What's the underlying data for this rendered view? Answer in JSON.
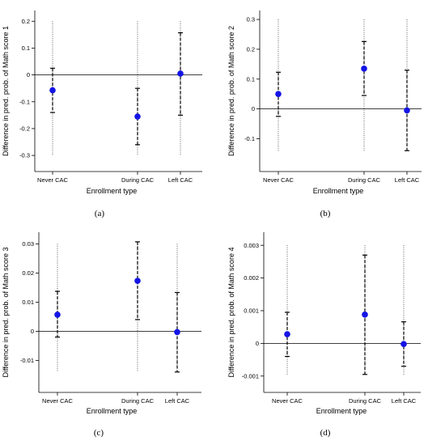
{
  "chart_data": [
    {
      "type": "scatter",
      "panel_label": "(a)",
      "xlabel": "Enrollment type",
      "ylabel": "Difference in pred. prob. of Math score 1",
      "categories": [
        "Never CAC",
        "During CAC",
        "Left CAC"
      ],
      "yticks": [
        0.2,
        0.1,
        0,
        -0.1,
        -0.2,
        -0.3
      ],
      "ytick_labels": [
        "0.2",
        "0.1",
        "0",
        "-0.1",
        "-0.2",
        "-0.3"
      ],
      "ylim": [
        -0.36,
        0.24
      ],
      "reference_line": 0,
      "points": [
        {
          "value": -0.057,
          "ci": [
            -0.14,
            0.025
          ],
          "range": [
            -0.3,
            0.2
          ]
        },
        {
          "value": -0.155,
          "ci": [
            -0.26,
            -0.05
          ],
          "range": [
            -0.3,
            0.2
          ]
        },
        {
          "value": 0.005,
          "ci": [
            -0.15,
            0.157
          ],
          "range": [
            -0.3,
            0.2
          ]
        }
      ],
      "marker_color": "#1414e6"
    },
    {
      "type": "scatter",
      "panel_label": "(b)",
      "xlabel": "Enrollment type",
      "ylabel": "Difference in pred. prob. of Math score 2",
      "categories": [
        "Never CAC",
        "During CAC",
        "Left CAC"
      ],
      "yticks": [
        0.3,
        0.2,
        0.1,
        0,
        -0.1
      ],
      "ytick_labels": [
        "0.3",
        "0.2",
        "0.1",
        "0",
        "-0.1"
      ],
      "ylim": [
        -0.21,
        0.33
      ],
      "reference_line": 0,
      "points": [
        {
          "value": 0.05,
          "ci": [
            -0.025,
            0.123
          ],
          "range": [
            -0.14,
            0.3
          ]
        },
        {
          "value": 0.135,
          "ci": [
            0.045,
            0.226
          ],
          "range": [
            -0.14,
            0.3
          ]
        },
        {
          "value": -0.005,
          "ci": [
            -0.14,
            0.13
          ],
          "range": [
            -0.14,
            0.3
          ]
        }
      ],
      "marker_color": "#1414e6"
    },
    {
      "type": "scatter",
      "panel_label": "(c)",
      "xlabel": "Enrollment type",
      "ylabel": "Difference in pred. prob. of Math score 3",
      "categories": [
        "Never CAC",
        "During CAC",
        "Left CAC"
      ],
      "yticks": [
        0.03,
        0.02,
        0.01,
        0,
        -0.01
      ],
      "ytick_labels": [
        "0.03",
        "0.02",
        "0.01",
        "0",
        "-0.01"
      ],
      "ylim": [
        -0.021,
        0.034
      ],
      "reference_line": 0,
      "points": [
        {
          "value": 0.0057,
          "ci": [
            -0.002,
            0.0137
          ],
          "range": [
            -0.014,
            0.03
          ]
        },
        {
          "value": 0.0173,
          "ci": [
            0.004,
            0.0307
          ],
          "range": [
            -0.014,
            0.03
          ]
        },
        {
          "value": -0.0003,
          "ci": [
            -0.014,
            0.0133
          ],
          "range": [
            -0.014,
            0.03
          ]
        }
      ],
      "marker_color": "#1414e6"
    },
    {
      "type": "scatter",
      "panel_label": "(d)",
      "xlabel": "Enrollment type",
      "ylabel": "Difference in pred. prob. of Math score 4",
      "categories": [
        "Never CAC",
        "During CAC",
        "Left CAC"
      ],
      "yticks": [
        0.003,
        0.002,
        0.001,
        0,
        -0.001
      ],
      "ytick_labels": [
        "0.003",
        "0.002",
        "0.001",
        "0",
        "-0.001"
      ],
      "ylim": [
        -0.0015,
        0.0034
      ],
      "reference_line": 0,
      "points": [
        {
          "value": 0.00028,
          "ci": [
            -0.0004,
            0.00095
          ],
          "range": [
            -0.00095,
            0.003
          ]
        },
        {
          "value": 0.00088,
          "ci": [
            -0.00095,
            0.0027
          ],
          "range": [
            -0.00095,
            0.003
          ]
        },
        {
          "value": -2e-05,
          "ci": [
            -0.0007,
            0.00066
          ],
          "range": [
            -0.00095,
            0.003
          ]
        }
      ],
      "marker_color": "#1414e6"
    }
  ]
}
